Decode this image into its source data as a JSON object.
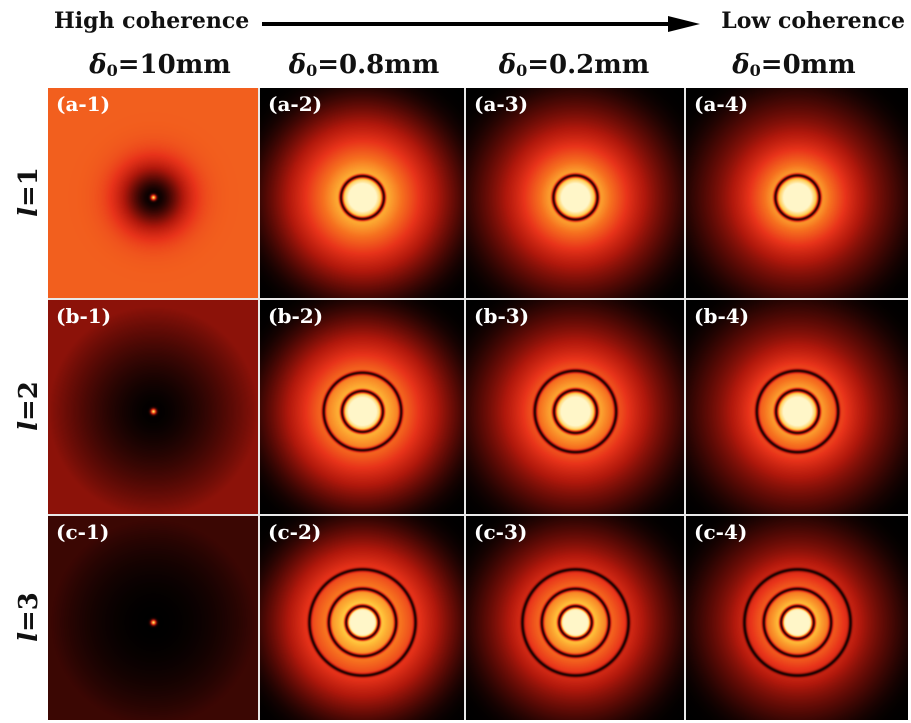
{
  "header": {
    "high_label": "High coherence",
    "low_label": "Low coherence"
  },
  "columns": [
    {
      "delta_symbol": "δ",
      "subscript": "0",
      "value_text": "=10mm",
      "delta0_mm": 10
    },
    {
      "delta_symbol": "δ",
      "subscript": "0",
      "value_text": "=0.8mm",
      "delta0_mm": 0.8
    },
    {
      "delta_symbol": "δ",
      "subscript": "0",
      "value_text": "=0.2mm",
      "delta0_mm": 0.2
    },
    {
      "delta_symbol": "δ",
      "subscript": "0",
      "value_text": "=0mm",
      "delta0_mm": 0
    }
  ],
  "rows": [
    {
      "ell_symbol": "l",
      "value_text": "=1",
      "l": 1
    },
    {
      "ell_symbol": "l",
      "value_text": "=2",
      "l": 2
    },
    {
      "ell_symbol": "l",
      "value_text": "=3",
      "l": 3
    }
  ],
  "panels": [
    [
      "(a-1)",
      "(a-2)",
      "(a-3)",
      "(a-4)"
    ],
    [
      "(b-1)",
      "(b-2)",
      "(b-3)",
      "(b-4)"
    ],
    [
      "(c-1)",
      "(c-2)",
      "(c-3)",
      "(c-4)"
    ]
  ],
  "colormap": [
    "#000000",
    "#5a0a05",
    "#b0180c",
    "#e8331a",
    "#f6701f",
    "#ffc23a",
    "#fff6c8"
  ]
}
